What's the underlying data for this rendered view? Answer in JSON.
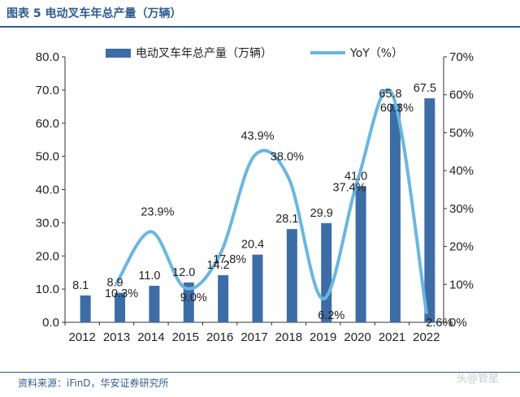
{
  "header": {
    "title": "图表 5 电动叉车年总产量（万辆）"
  },
  "footer": {
    "source": "资料来源：iFinD，华安证券研究所",
    "watermark": "头@管星"
  },
  "chart_data": {
    "type": "bar",
    "categories": [
      "2012",
      "2013",
      "2014",
      "2015",
      "2016",
      "2017",
      "2018",
      "2019",
      "2020",
      "2021",
      "2022"
    ],
    "series": [
      {
        "name": "电动叉车年总产量（万辆）",
        "kind": "bar",
        "axis": "left",
        "color": "#3d6da6",
        "values": [
          8.1,
          8.9,
          11.0,
          12.0,
          14.2,
          20.4,
          28.1,
          29.9,
          41.0,
          65.8,
          67.5
        ],
        "labels": [
          "8.1",
          "8.9",
          "11.0",
          "12.0",
          "14.2",
          "20.4",
          "28.1",
          "29.9",
          "41.0",
          "65.8",
          "67.5"
        ]
      },
      {
        "name": "YoY（%）",
        "kind": "line",
        "axis": "right",
        "color": "#6ab7e0",
        "values": [
          null,
          10.3,
          23.9,
          9.0,
          17.8,
          43.9,
          38.0,
          6.2,
          37.4,
          60.3,
          2.6
        ],
        "labels": [
          "",
          "10.3%",
          "23.9%",
          "9.0%",
          "17.8%",
          "43.9%",
          "38.0%",
          "6.2%",
          "37.4%",
          "60.3%",
          "2.6%"
        ]
      }
    ],
    "y_left": {
      "min": 0,
      "max": 80,
      "ticks": [
        "0.0",
        "10.0",
        "20.0",
        "30.0",
        "40.0",
        "50.0",
        "60.0",
        "70.0",
        "80.0"
      ]
    },
    "y_right": {
      "min": 0,
      "max": 70,
      "ticks": [
        "0%",
        "10%",
        "20%",
        "30%",
        "40%",
        "50%",
        "60%",
        "70%"
      ]
    },
    "grid": false,
    "legend": "top"
  }
}
